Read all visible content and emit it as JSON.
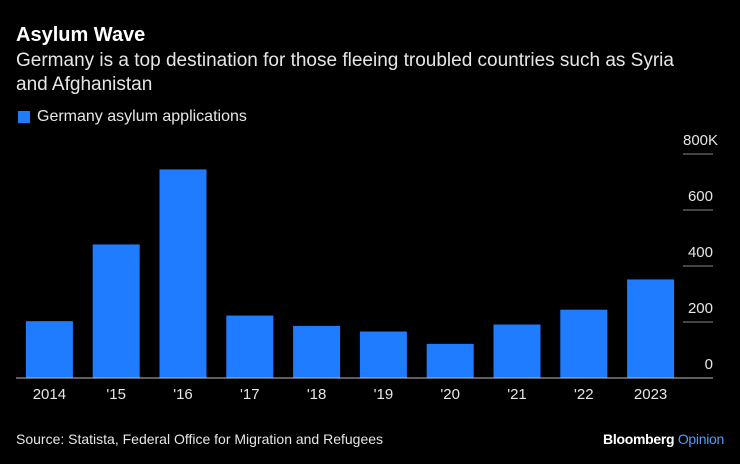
{
  "chart_data": {
    "type": "bar",
    "title": "Asylum Wave",
    "subtitle": "Germany is a top destination for those fleeing troubled countries such as Syria and Afghanistan",
    "categories": [
      "2014",
      "'15",
      "'16",
      "'17",
      "'18",
      "'19",
      "'20",
      "'21",
      "'22",
      "2023"
    ],
    "series": [
      {
        "name": "Germany asylum applications",
        "color": "#1f7cff",
        "values": [
          203,
          477,
          745,
          223,
          186,
          166,
          122,
          191,
          244,
          352
        ]
      }
    ],
    "ylim": [
      0,
      800
    ],
    "yticks": [
      0,
      200,
      400,
      600,
      {
        "value": 800,
        "label": "800K"
      }
    ],
    "grid": true,
    "source": "Source: Statista, Federal Office for Migration and Refugees",
    "credit": "Bloomberg",
    "credit_suffix": "Opinion"
  }
}
